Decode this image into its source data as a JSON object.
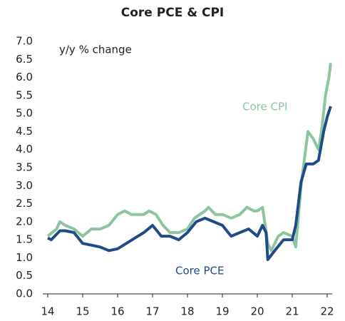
{
  "chart_data": {
    "type": "line",
    "title": "Core PCE & CPI",
    "annotations": [
      "y/y % change",
      "Core CPI",
      "Core PCE"
    ],
    "xlim": [
      14,
      22.1
    ],
    "xticks": [
      14,
      15,
      16,
      17,
      18,
      19,
      20,
      21,
      22
    ],
    "ylim": [
      0,
      7
    ],
    "yticks": [
      {
        "value": 0,
        "label": "0.0"
      },
      {
        "value": 0.5,
        "label": "0.5"
      },
      {
        "value": 1,
        "label": "1.0"
      },
      {
        "value": 1.5,
        "label": "1.5"
      },
      {
        "value": 2,
        "label": "2.0"
      },
      {
        "value": 2.5,
        "label": "2.5"
      },
      {
        "value": 3,
        "label": "3.0"
      },
      {
        "value": 3.5,
        "label": "3.5"
      },
      {
        "value": 4,
        "label": "4.0"
      },
      {
        "value": 4.5,
        "label": "4.5"
      },
      {
        "value": 5,
        "label": "5.0"
      },
      {
        "value": 5.5,
        "label": "5.5"
      },
      {
        "value": 6,
        "label": "6.0"
      },
      {
        "value": 6.5,
        "label": "6.5"
      },
      {
        "value": 7,
        "label": "7.0"
      }
    ],
    "series": [
      {
        "name": "Core CPI",
        "color": "#8cc59f",
        "x": [
          14.0,
          14.25,
          14.35,
          14.5,
          14.75,
          15.0,
          15.25,
          15.5,
          15.75,
          16.0,
          16.2,
          16.4,
          16.6,
          16.75,
          16.9,
          17.1,
          17.3,
          17.5,
          17.75,
          18.0,
          18.2,
          18.5,
          18.6,
          18.8,
          19.0,
          19.25,
          19.5,
          19.7,
          19.9,
          20.0,
          20.15,
          20.3,
          20.4,
          20.6,
          20.75,
          21.0,
          21.1,
          21.25,
          21.45,
          21.6,
          21.75,
          21.85,
          21.95,
          22.05,
          22.1
        ],
        "values": [
          1.6,
          1.8,
          2.0,
          1.9,
          1.8,
          1.6,
          1.8,
          1.8,
          1.9,
          2.2,
          2.3,
          2.2,
          2.2,
          2.2,
          2.3,
          2.2,
          1.9,
          1.7,
          1.7,
          1.8,
          2.1,
          2.3,
          2.4,
          2.2,
          2.2,
          2.1,
          2.2,
          2.4,
          2.3,
          2.3,
          2.4,
          1.4,
          1.2,
          1.6,
          1.7,
          1.6,
          1.3,
          3.0,
          4.5,
          4.3,
          4.0,
          4.6,
          5.5,
          6.0,
          6.4
        ]
      },
      {
        "name": "Core PCE",
        "color": "#1f4b86",
        "x": [
          14.0,
          14.1,
          14.35,
          14.5,
          14.75,
          15.0,
          15.25,
          15.5,
          15.75,
          16.0,
          16.25,
          16.5,
          16.75,
          17.0,
          17.25,
          17.5,
          17.75,
          18.0,
          18.25,
          18.5,
          18.75,
          19.0,
          19.25,
          19.5,
          19.75,
          20.0,
          20.15,
          20.25,
          20.3,
          20.5,
          20.75,
          21.0,
          21.1,
          21.25,
          21.4,
          21.6,
          21.75,
          21.9,
          22.0,
          22.1
        ],
        "values": [
          1.55,
          1.5,
          1.75,
          1.75,
          1.7,
          1.4,
          1.35,
          1.3,
          1.2,
          1.25,
          1.4,
          1.55,
          1.7,
          1.9,
          1.6,
          1.6,
          1.5,
          1.7,
          2.0,
          2.1,
          2.0,
          1.9,
          1.6,
          1.7,
          1.8,
          1.6,
          1.9,
          1.7,
          0.95,
          1.2,
          1.5,
          1.5,
          1.9,
          3.1,
          3.6,
          3.6,
          3.7,
          4.5,
          4.9,
          5.2
        ]
      }
    ]
  }
}
